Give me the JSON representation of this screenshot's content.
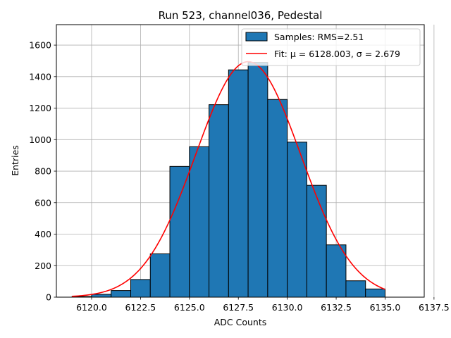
{
  "chart_data": {
    "type": "bar",
    "title": "Run 523, channel036, Pedestal",
    "xlabel": "ADC Counts",
    "ylabel": "Entries",
    "xlim": [
      6118.2,
      6137.0
    ],
    "ylim": [
      0,
      1730
    ],
    "grid": true,
    "legend_position": "top-right",
    "x_ticks": [
      6120.0,
      6122.5,
      6125.0,
      6127.5,
      6130.0,
      6132.5,
      6135.0,
      6137.5
    ],
    "x_tick_labels": [
      "6120.0",
      "6122.5",
      "6125.0",
      "6127.5",
      "6130.0",
      "6132.5",
      "6135.0",
      "6137.5"
    ],
    "y_ticks": [
      0,
      200,
      400,
      600,
      800,
      1000,
      1200,
      1400,
      1600
    ],
    "y_tick_labels": [
      "0",
      "200",
      "400",
      "600",
      "800",
      "1000",
      "1200",
      "1400",
      "1600"
    ],
    "bin_edges": [
      6119,
      6120,
      6121,
      6122,
      6123,
      6124,
      6125,
      6126,
      6127,
      6128,
      6129,
      6130,
      6131,
      6132,
      6133,
      6134,
      6135
    ],
    "counts": [
      4,
      18,
      42,
      112,
      275,
      830,
      955,
      1222,
      1443,
      1490,
      1255,
      984,
      710,
      332,
      104,
      52
    ],
    "histogram_color": "#1f77b4",
    "fit": {
      "mu": 6128.003,
      "sigma": 2.679,
      "amplitude": 1495,
      "x_range": [
        6119,
        6135
      ],
      "color": "#ff0000"
    },
    "legend": [
      {
        "kind": "patch",
        "label": "Samples: RMS=2.51"
      },
      {
        "kind": "line",
        "label": "Fit: μ = 6128.003, σ = 2.679"
      }
    ]
  }
}
